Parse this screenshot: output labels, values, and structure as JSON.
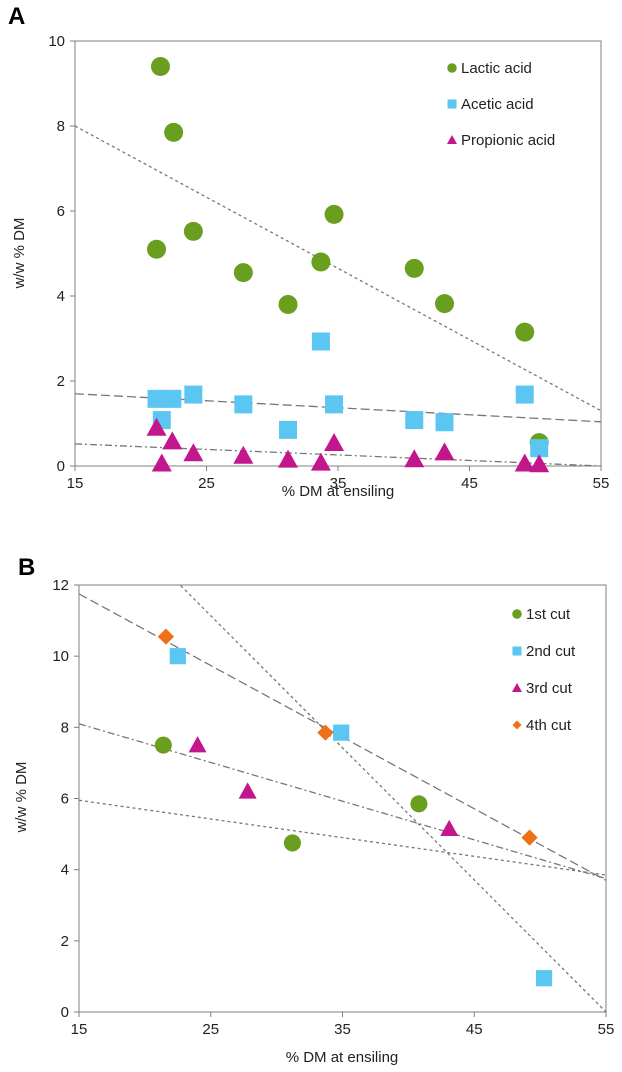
{
  "colors": {
    "lactic": "#6a9e1e",
    "acetic": "#5cc6f2",
    "propionic": "#c4168c",
    "fourth": "#f07018",
    "trend": "#777777"
  },
  "chart_data": [
    {
      "type": "scatter",
      "panel_label": "A",
      "xlabel": "% DM at ensiling",
      "ylabel": "w/w % DM",
      "xlim": [
        15,
        55
      ],
      "ylim": [
        0,
        10
      ],
      "xticks": [
        15,
        25,
        35,
        45,
        55
      ],
      "yticks": [
        0,
        2,
        4,
        6,
        8,
        10
      ],
      "legend": "top-right",
      "grid": false,
      "series": [
        {
          "name": "Lactic acid",
          "marker": "circle",
          "color": "#6a9e1e",
          "x": [
            21.5,
            22.5,
            21.2,
            24.0,
            27.8,
            31.2,
            33.7,
            34.7,
            40.8,
            43.1,
            49.2,
            50.3
          ],
          "y": [
            9.4,
            7.85,
            5.1,
            5.52,
            4.55,
            3.8,
            4.8,
            5.92,
            4.65,
            3.82,
            3.15,
            0.55
          ],
          "trend": {
            "x": [
              15,
              55
            ],
            "y": [
              8.0,
              1.3
            ],
            "dash": "short"
          }
        },
        {
          "name": "Acetic acid",
          "marker": "square",
          "color": "#5cc6f2",
          "x": [
            21.2,
            21.6,
            22.4,
            24.0,
            27.8,
            31.2,
            33.7,
            34.7,
            40.8,
            43.1,
            49.2,
            50.3
          ],
          "y": [
            1.58,
            1.08,
            1.58,
            1.68,
            1.45,
            0.85,
            2.93,
            1.45,
            1.08,
            1.03,
            1.68,
            0.42
          ],
          "trend": {
            "x": [
              15,
              55
            ],
            "y": [
              1.7,
              1.04
            ],
            "dash": "long"
          }
        },
        {
          "name": "Propionic acid",
          "marker": "triangle",
          "color": "#c4168c",
          "x": [
            21.2,
            21.6,
            22.4,
            24.0,
            27.8,
            31.2,
            33.7,
            34.7,
            40.8,
            43.1,
            49.2,
            50.3
          ],
          "y": [
            0.9,
            0.06,
            0.58,
            0.3,
            0.24,
            0.15,
            0.08,
            0.54,
            0.16,
            0.32,
            0.06,
            0.04
          ],
          "trend": {
            "x": [
              15,
              55
            ],
            "y": [
              0.52,
              0.0
            ],
            "dash": "dashdot"
          }
        }
      ]
    },
    {
      "type": "scatter",
      "panel_label": "B",
      "xlabel": "% DM at ensiling",
      "ylabel": "w/w % DM",
      "xlim": [
        15,
        55
      ],
      "ylim": [
        0,
        12
      ],
      "xticks": [
        15,
        25,
        35,
        45,
        55
      ],
      "yticks": [
        0,
        2,
        4,
        6,
        8,
        10,
        12
      ],
      "legend": "top-right",
      "grid": false,
      "series": [
        {
          "name": "1st cut",
          "marker": "circle",
          "color": "#6a9e1e",
          "x": [
            21.4,
            31.2,
            40.8
          ],
          "y": [
            7.5,
            4.75,
            5.85
          ],
          "trend": {
            "x": [
              15,
              55
            ],
            "y": [
              5.95,
              3.85
            ],
            "dash": "short"
          }
        },
        {
          "name": "2nd cut",
          "marker": "square",
          "color": "#5cc6f2",
          "x": [
            22.5,
            34.9,
            50.3
          ],
          "y": [
            10.0,
            7.85,
            0.95
          ],
          "trend": {
            "x": [
              15,
              55
            ],
            "y": [
              14.85,
              0.0
            ],
            "dash": "short"
          }
        },
        {
          "name": "3rd cut",
          "marker": "triangle",
          "color": "#c4168c",
          "x": [
            24.0,
            27.8,
            43.1
          ],
          "y": [
            7.5,
            6.2,
            5.15
          ],
          "trend": {
            "x": [
              15,
              55
            ],
            "y": [
              8.1,
              3.75
            ],
            "dash": "dashdot"
          }
        },
        {
          "name": "4th cut",
          "marker": "diamond",
          "color": "#f07018",
          "x": [
            21.6,
            33.7,
            49.2
          ],
          "y": [
            10.55,
            7.85,
            4.9
          ],
          "trend": {
            "x": [
              15,
              55
            ],
            "y": [
              11.75,
              3.7
            ],
            "dash": "long"
          }
        }
      ]
    }
  ]
}
